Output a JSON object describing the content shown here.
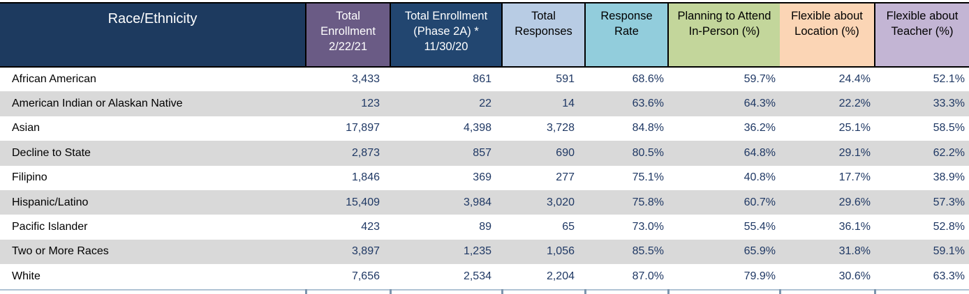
{
  "chart_data": {
    "type": "table",
    "columns": [
      {
        "label": "Race/Ethnicity",
        "header_bg": "#1D3A5F",
        "header_fg": "#FFFFFF"
      },
      {
        "label": "Total\nEnrollment\n2/22/21",
        "header_bg": "#6A5B85",
        "header_fg": "#FFFFFF"
      },
      {
        "label": "Total Enrollment\n(Phase 2A) *\n11/30/20",
        "header_bg": "#224670",
        "header_fg": "#FFFFFF"
      },
      {
        "label": "Total\nResponses",
        "header_bg": "#B8CCE4",
        "header_fg": "#000000"
      },
      {
        "label": "Response\nRate",
        "header_bg": "#92CDDC",
        "header_fg": "#000000"
      },
      {
        "label": "Planning to Attend\nIn-Person (%)",
        "header_bg": "#C3D69B",
        "header_fg": "#000000"
      },
      {
        "label": "Flexible about\nLocation (%)",
        "header_bg": "#FBD5B5",
        "header_fg": "#000000"
      },
      {
        "label": "Flexible about\nTeacher (%)",
        "header_bg": "#C3B5D4",
        "header_fg": "#000000"
      }
    ],
    "rows": [
      [
        "African American",
        "3,433",
        "861",
        "591",
        "68.6%",
        "59.7%",
        "24.4%",
        "52.1%"
      ],
      [
        "American Indian or Alaskan Native",
        "123",
        "22",
        "14",
        "63.6%",
        "64.3%",
        "22.2%",
        "33.3%"
      ],
      [
        "Asian",
        "17,897",
        "4,398",
        "3,728",
        "84.8%",
        "36.2%",
        "25.1%",
        "58.5%"
      ],
      [
        "Decline to State",
        "2,873",
        "857",
        "690",
        "80.5%",
        "64.8%",
        "29.1%",
        "62.2%"
      ],
      [
        "Filipino",
        "1,846",
        "369",
        "277",
        "75.1%",
        "40.8%",
        "17.7%",
        "38.9%"
      ],
      [
        "Hispanic/Latino",
        "15,409",
        "3,984",
        "3,020",
        "75.8%",
        "60.7%",
        "29.6%",
        "57.3%"
      ],
      [
        "Pacific Islander",
        "423",
        "89",
        "65",
        "73.0%",
        "55.4%",
        "36.1%",
        "52.8%"
      ],
      [
        "Two or More Races",
        "3,897",
        "1,235",
        "1,056",
        "85.5%",
        "65.9%",
        "31.8%",
        "59.1%"
      ],
      [
        "White",
        "7,656",
        "2,534",
        "2,204",
        "87.0%",
        "79.9%",
        "30.6%",
        "63.3%"
      ]
    ]
  },
  "colors": {
    "row_stripe": "#D9D9D9",
    "row_plain": "#FFFFFF",
    "data_text": "#1F3864",
    "label_text": "#000000",
    "header_border": "#000000",
    "bottom_line": "#AFC2D4",
    "bottom_tick": "#7C95AE"
  }
}
